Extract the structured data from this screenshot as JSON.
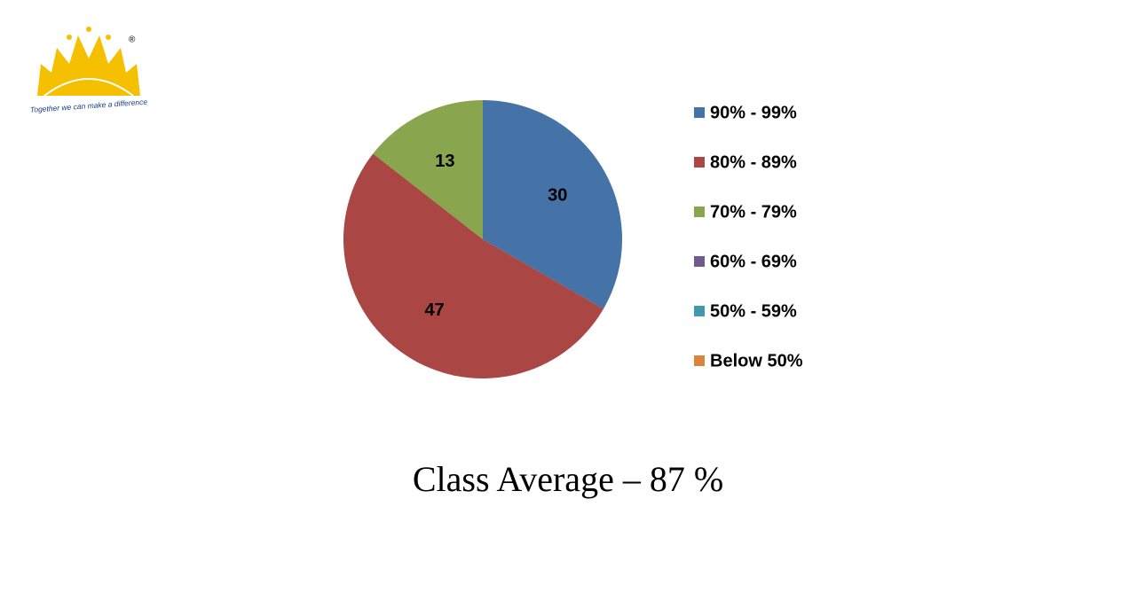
{
  "logo": {
    "registered": "®",
    "tagline": "Together we can make a difference"
  },
  "chart_data": {
    "type": "pie",
    "categories": [
      "90%  - 99%",
      "80%  - 89%",
      "70%  - 79%",
      "60%  - 69%",
      "50%  - 59%",
      "Below 50%"
    ],
    "values": [
      30,
      47,
      13,
      0,
      0,
      0
    ],
    "colors": [
      "#4572a7",
      "#aa4643",
      "#89a54e",
      "#71588f",
      "#4198af",
      "#db843d"
    ],
    "legend": "right"
  },
  "caption": "Class Average – 87 %"
}
